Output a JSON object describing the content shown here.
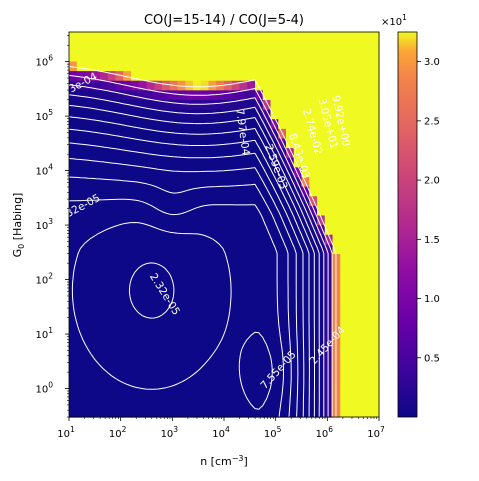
{
  "chart_data": {
    "type": "heatmap",
    "title": "CO(J=15-14) / CO(J=5-4)",
    "xlabel": "n [cm",
    "xlabel_sup": "−3",
    "xlabel_close": "]",
    "ylabel": "G",
    "ylabel_sub": "0",
    "ylabel_rest": " [Habing]",
    "xscale": "log",
    "yscale": "log",
    "xlim": [
      10,
      10000000
    ],
    "ylim": [
      0.3,
      3500000
    ],
    "xticks": [
      {
        "value": 10,
        "base": "10",
        "exp": "1"
      },
      {
        "value": 100,
        "base": "10",
        "exp": "2"
      },
      {
        "value": 1000,
        "base": "10",
        "exp": "3"
      },
      {
        "value": 10000,
        "base": "10",
        "exp": "4"
      },
      {
        "value": 100000,
        "base": "10",
        "exp": "5"
      },
      {
        "value": 1000000,
        "base": "10",
        "exp": "6"
      },
      {
        "value": 10000000,
        "base": "10",
        "exp": "7"
      }
    ],
    "yticks": [
      {
        "value": 1,
        "base": "10",
        "exp": "0"
      },
      {
        "value": 10,
        "base": "10",
        "exp": "1"
      },
      {
        "value": 100,
        "base": "10",
        "exp": "2"
      },
      {
        "value": 1000,
        "base": "10",
        "exp": "3"
      },
      {
        "value": 10000,
        "base": "10",
        "exp": "4"
      },
      {
        "value": 100000,
        "base": "10",
        "exp": "5"
      },
      {
        "value": 1000000,
        "base": "10",
        "exp": "6"
      }
    ],
    "colormap": "plasma",
    "colorbar": {
      "range": [
        0.0,
        3.25
      ],
      "multiplier_base": "×10",
      "multiplier_exp": "1",
      "ticks": [
        "0.5",
        "1.0",
        "1.5",
        "2.0",
        "2.5",
        "3.0"
      ]
    },
    "contour_labels": [
      {
        "text": "3e-04",
        "log_n": 1.3,
        "log_g": 5.56,
        "angle": -28
      },
      {
        "text": "32e-05",
        "log_n": 1.3,
        "log_g": 3.3,
        "angle": -28
      },
      {
        "text": "2.32e-05",
        "log_n": 2.8,
        "log_g": 1.7,
        "angle": 58
      },
      {
        "text": "7.97e-04",
        "log_n": 4.3,
        "log_g": 4.7,
        "angle": 82
      },
      {
        "text": "2.59e-03",
        "log_n": 4.95,
        "log_g": 4.05,
        "angle": 70
      },
      {
        "text": "8.43e-03",
        "log_n": 5.4,
        "log_g": 4.25,
        "angle": 72
      },
      {
        "text": "2.74e-02",
        "log_n": 5.65,
        "log_g": 4.7,
        "angle": 74
      },
      {
        "text": "3.05e+01",
        "log_n": 5.95,
        "log_g": 4.85,
        "angle": 76
      },
      {
        "text": "9.92e+00",
        "log_n": 6.2,
        "log_g": 4.9,
        "angle": 78
      },
      {
        "text": "7.55e-05",
        "log_n": 5.1,
        "log_g": 0.3,
        "angle": -48
      },
      {
        "text": "2.45e-04",
        "log_n": 6.05,
        "log_g": 0.75,
        "angle": -48
      }
    ]
  }
}
